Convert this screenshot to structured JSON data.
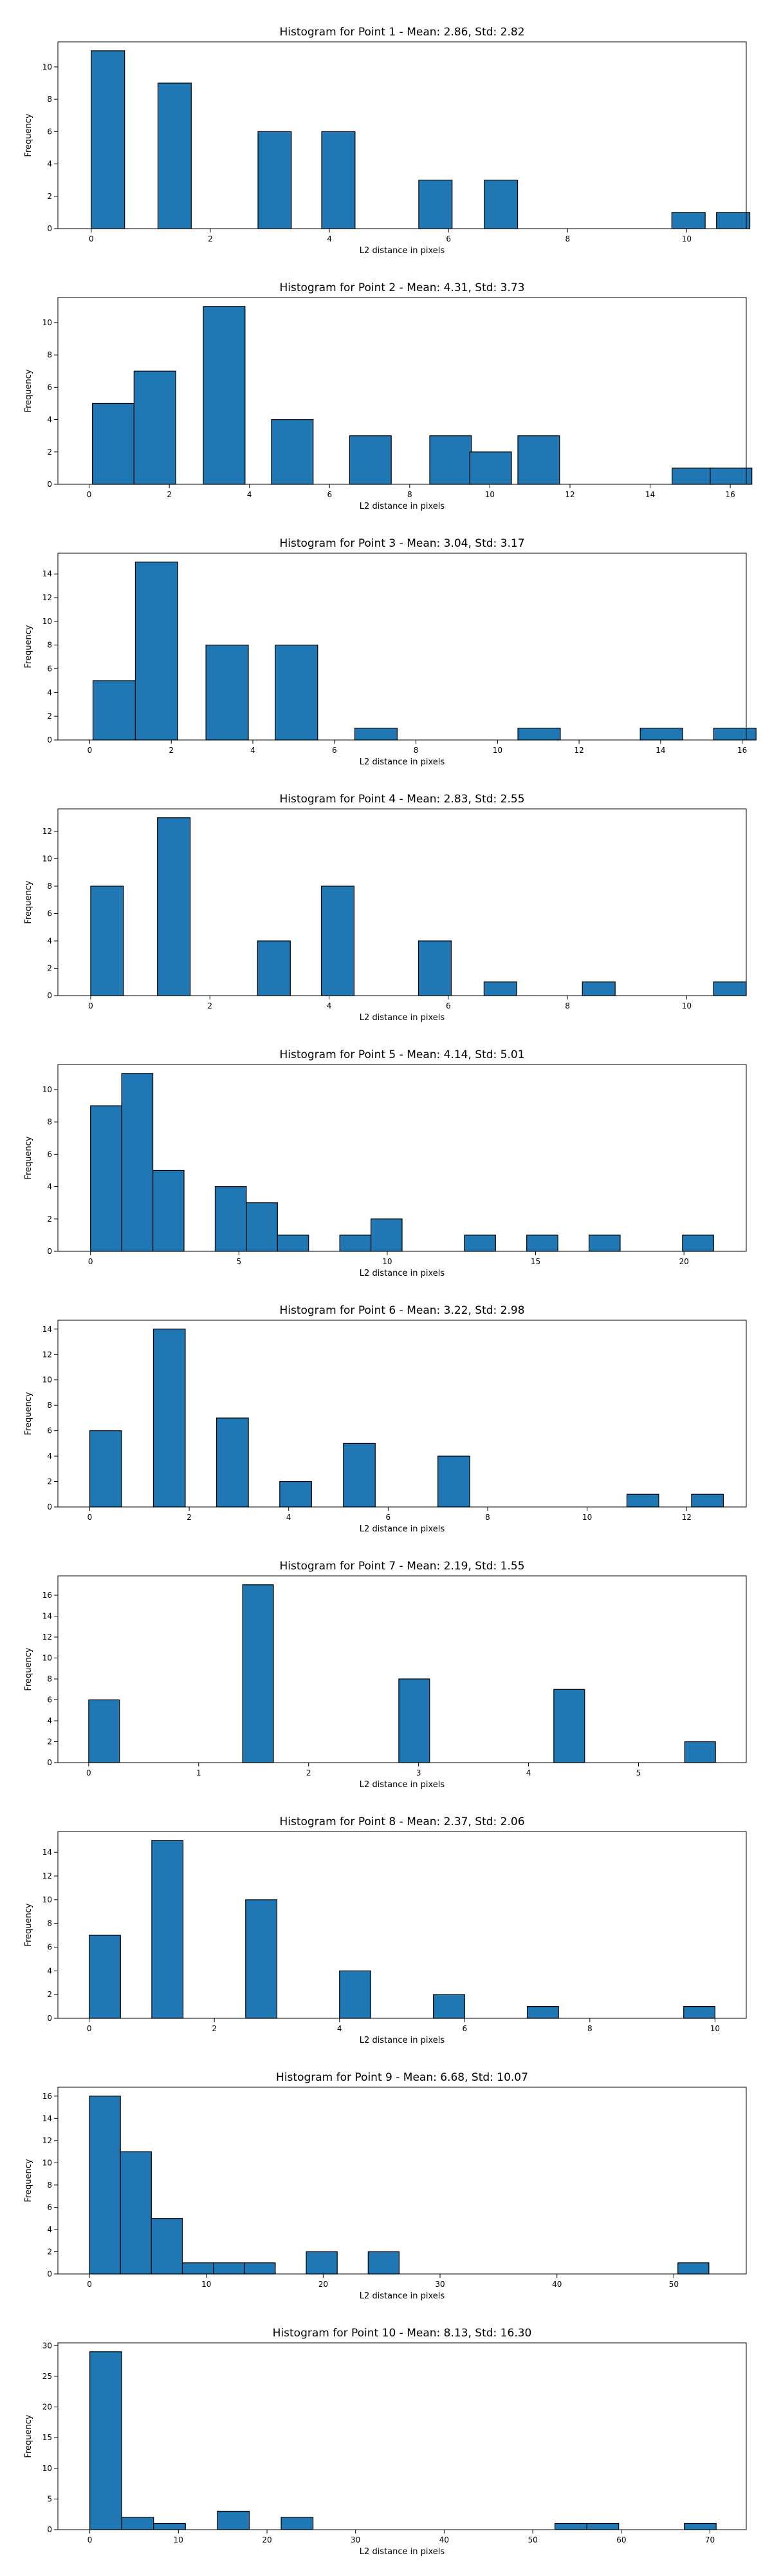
{
  "chart_data": [
    {
      "type": "bar",
      "title": "Histogram for Point 1 - Mean: 2.86, Std: 2.82",
      "xlabel": "L2 distance in pixels",
      "ylabel": "Frequency",
      "xlim": [
        -0.56,
        11.0
      ],
      "ylim": [
        0,
        11.55
      ],
      "xticks": [
        0,
        2,
        4,
        6,
        8,
        10
      ],
      "yticks": [
        0,
        2,
        4,
        6,
        8,
        10
      ],
      "bin_width": 0.56,
      "bins": [
        {
          "x": 0,
          "count": 11
        },
        {
          "x": 1.12,
          "count": 9
        },
        {
          "x": 2.8,
          "count": 6
        },
        {
          "x": 3.87,
          "count": 6
        },
        {
          "x": 5.5,
          "count": 3
        },
        {
          "x": 6.6,
          "count": 3
        },
        {
          "x": 9.75,
          "count": 1
        },
        {
          "x": 10.5,
          "count": 1
        }
      ]
    },
    {
      "type": "bar",
      "title": "Histogram for Point 2 - Mean: 4.31, Std: 3.73",
      "xlabel": "L2 distance in pixels",
      "ylabel": "Frequency",
      "xlim": [
        -0.78,
        16.4
      ],
      "ylim": [
        0,
        11.55
      ],
      "xticks": [
        0,
        2,
        4,
        6,
        8,
        10,
        12,
        14,
        16
      ],
      "yticks": [
        0,
        2,
        4,
        6,
        8,
        10
      ],
      "bin_width": 1.04,
      "bins": [
        {
          "x": 0.08,
          "count": 5
        },
        {
          "x": 1.12,
          "count": 7
        },
        {
          "x": 2.85,
          "count": 11
        },
        {
          "x": 4.55,
          "count": 4
        },
        {
          "x": 6.5,
          "count": 3
        },
        {
          "x": 8.5,
          "count": 3
        },
        {
          "x": 9.5,
          "count": 2
        },
        {
          "x": 10.7,
          "count": 3
        },
        {
          "x": 14.55,
          "count": 1
        },
        {
          "x": 15.5,
          "count": 1
        }
      ]
    },
    {
      "type": "bar",
      "title": "Histogram for Point 3 - Mean: 3.04, Std: 3.17",
      "xlabel": "L2 distance in pixels",
      "ylabel": "Frequency",
      "xlim": [
        -0.78,
        16.1
      ],
      "ylim": [
        0,
        15.75
      ],
      "xticks": [
        0,
        2,
        4,
        6,
        8,
        10,
        12,
        14,
        16
      ],
      "yticks": [
        0,
        2,
        4,
        6,
        8,
        10,
        12,
        14
      ],
      "bin_width": 1.04,
      "bins": [
        {
          "x": 0.08,
          "count": 5
        },
        {
          "x": 1.12,
          "count": 15
        },
        {
          "x": 2.85,
          "count": 8
        },
        {
          "x": 4.55,
          "count": 8
        },
        {
          "x": 6.5,
          "count": 1
        },
        {
          "x": 10.5,
          "count": 1
        },
        {
          "x": 13.5,
          "count": 1
        },
        {
          "x": 15.3,
          "count": 1
        }
      ]
    },
    {
      "type": "bar",
      "title": "Histogram for Point 4 - Mean: 2.83, Std: 2.55",
      "xlabel": "L2 distance in pixels",
      "ylabel": "Frequency",
      "xlim": [
        -0.55,
        11.0
      ],
      "ylim": [
        0,
        13.65
      ],
      "xticks": [
        0,
        2,
        4,
        6,
        8,
        10
      ],
      "yticks": [
        0,
        2,
        4,
        6,
        8,
        10,
        12
      ],
      "bin_width": 0.55,
      "bins": [
        {
          "x": 0,
          "count": 8
        },
        {
          "x": 1.12,
          "count": 13
        },
        {
          "x": 2.8,
          "count": 4
        },
        {
          "x": 3.87,
          "count": 8
        },
        {
          "x": 5.5,
          "count": 4
        },
        {
          "x": 6.6,
          "count": 1
        },
        {
          "x": 8.25,
          "count": 1
        },
        {
          "x": 10.45,
          "count": 1
        }
      ]
    },
    {
      "type": "bar",
      "title": "Histogram for Point 5 - Mean: 4.14, Std: 5.01",
      "xlabel": "L2 distance in pixels",
      "ylabel": "Frequency",
      "xlim": [
        -1.1,
        22.1
      ],
      "ylim": [
        0,
        11.55
      ],
      "xticks": [
        0,
        5,
        10,
        15,
        20
      ],
      "yticks": [
        0,
        2,
        4,
        6,
        8,
        10
      ],
      "bin_width": 1.05,
      "bins": [
        {
          "x": 0,
          "count": 9
        },
        {
          "x": 1.05,
          "count": 11
        },
        {
          "x": 2.1,
          "count": 5
        },
        {
          "x": 4.2,
          "count": 4
        },
        {
          "x": 5.25,
          "count": 3
        },
        {
          "x": 6.3,
          "count": 1
        },
        {
          "x": 8.4,
          "count": 1
        },
        {
          "x": 9.45,
          "count": 2
        },
        {
          "x": 12.6,
          "count": 1
        },
        {
          "x": 14.7,
          "count": 1
        },
        {
          "x": 16.8,
          "count": 1
        },
        {
          "x": 19.95,
          "count": 1
        }
      ]
    },
    {
      "type": "bar",
      "title": "Histogram for Point 6 - Mean: 3.22, Std: 2.98",
      "xlabel": "L2 distance in pixels",
      "ylabel": "Frequency",
      "xlim": [
        -0.64,
        13.2
      ],
      "ylim": [
        0,
        14.7
      ],
      "xticks": [
        0,
        2,
        4,
        6,
        8,
        10,
        12
      ],
      "yticks": [
        0,
        2,
        4,
        6,
        8,
        10,
        12,
        14
      ],
      "bin_width": 0.64,
      "bins": [
        {
          "x": 0,
          "count": 6
        },
        {
          "x": 1.28,
          "count": 14
        },
        {
          "x": 2.55,
          "count": 7
        },
        {
          "x": 3.82,
          "count": 2
        },
        {
          "x": 5.1,
          "count": 5
        },
        {
          "x": 7.0,
          "count": 4
        },
        {
          "x": 10.8,
          "count": 1
        },
        {
          "x": 12.1,
          "count": 1
        }
      ]
    },
    {
      "type": "bar",
      "title": "Histogram for Point 7 - Mean: 2.19, Std: 1.55",
      "xlabel": "L2 distance in pixels",
      "ylabel": "Frequency",
      "xlim": [
        -0.28,
        5.98
      ],
      "ylim": [
        0,
        17.85
      ],
      "xticks": [
        0,
        1,
        2,
        3,
        4,
        5
      ],
      "yticks": [
        0,
        2,
        4,
        6,
        8,
        10,
        12,
        14,
        16
      ],
      "bin_width": 0.28,
      "bins": [
        {
          "x": 0,
          "count": 6
        },
        {
          "x": 1.4,
          "count": 17
        },
        {
          "x": 2.82,
          "count": 8
        },
        {
          "x": 4.23,
          "count": 7
        },
        {
          "x": 5.42,
          "count": 2
        }
      ]
    },
    {
      "type": "bar",
      "title": "Histogram for Point 8 - Mean: 2.37, Std: 2.06",
      "xlabel": "L2 distance in pixels",
      "ylabel": "Frequency",
      "xlim": [
        -0.5,
        10.5
      ],
      "ylim": [
        0,
        15.75
      ],
      "xticks": [
        0,
        2,
        4,
        6,
        8,
        10
      ],
      "yticks": [
        0,
        2,
        4,
        6,
        8,
        10,
        12,
        14
      ],
      "bin_width": 0.5,
      "bins": [
        {
          "x": 0,
          "count": 7
        },
        {
          "x": 1.0,
          "count": 15
        },
        {
          "x": 2.5,
          "count": 10
        },
        {
          "x": 4.0,
          "count": 4
        },
        {
          "x": 5.5,
          "count": 2
        },
        {
          "x": 7.0,
          "count": 1
        },
        {
          "x": 9.5,
          "count": 1
        }
      ]
    },
    {
      "type": "bar",
      "title": "Histogram for Point 9 - Mean: 6.68, Std: 10.07",
      "xlabel": "L2 distance in pixels",
      "ylabel": "Frequency",
      "xlim": [
        -2.7,
        56.2
      ],
      "ylim": [
        0,
        16.8
      ],
      "xticks": [
        0,
        10,
        20,
        30,
        40,
        50
      ],
      "yticks": [
        0,
        2,
        4,
        6,
        8,
        10,
        12,
        14,
        16
      ],
      "bin_width": 2.65,
      "bins": [
        {
          "x": 0,
          "count": 16
        },
        {
          "x": 2.65,
          "count": 11
        },
        {
          "x": 5.3,
          "count": 5
        },
        {
          "x": 7.95,
          "count": 1
        },
        {
          "x": 10.6,
          "count": 1
        },
        {
          "x": 13.25,
          "count": 1
        },
        {
          "x": 18.55,
          "count": 2
        },
        {
          "x": 23.85,
          "count": 2
        },
        {
          "x": 50.35,
          "count": 1
        }
      ]
    },
    {
      "type": "bar",
      "title": "Histogram for Point 10 - Mean: 8.13, Std: 16.30",
      "xlabel": "L2 distance in pixels",
      "ylabel": "Frequency",
      "xlim": [
        -3.6,
        74.1
      ],
      "ylim": [
        0,
        30.45
      ],
      "xticks": [
        0,
        10,
        20,
        30,
        40,
        50,
        60,
        70
      ],
      "yticks": [
        0,
        5,
        10,
        15,
        20,
        25,
        30
      ],
      "bin_width": 3.6,
      "bins": [
        {
          "x": 0,
          "count": 29
        },
        {
          "x": 3.6,
          "count": 2
        },
        {
          "x": 7.2,
          "count": 1
        },
        {
          "x": 14.4,
          "count": 3
        },
        {
          "x": 21.6,
          "count": 2
        },
        {
          "x": 52.5,
          "count": 1
        },
        {
          "x": 56.1,
          "count": 1
        },
        {
          "x": 67.1,
          "count": 1
        }
      ]
    }
  ]
}
